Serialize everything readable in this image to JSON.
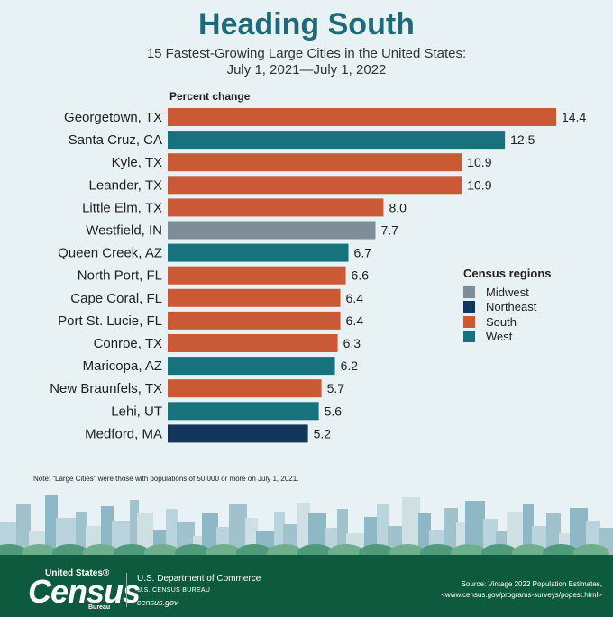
{
  "header": {
    "title": "Heading South",
    "subtitle_line1": "15 Fastest-Growing Large Cities in the United States:",
    "subtitle_line2": "July 1, 2021—July 1, 2022"
  },
  "colors": {
    "Midwest": "#7e8d98",
    "Northeast": "#13365b",
    "South": "#c95a35",
    "West": "#16727c",
    "title": "#1d6b78",
    "footer": "#0e5a3e"
  },
  "chart_data": {
    "type": "bar",
    "orientation": "horizontal",
    "value_label": "Percent change",
    "categories": [
      "Georgetown, TX",
      "Santa Cruz, CA",
      "Kyle, TX",
      "Leander, TX",
      "Little Elm, TX",
      "Westfield, IN",
      "Queen Creek, AZ",
      "North Port, FL",
      "Cape Coral, FL",
      "Port St. Lucie, FL",
      "Conroe, TX",
      "Maricopa, AZ",
      "New Braunfels, TX",
      "Lehi, UT",
      "Medford, MA"
    ],
    "values": [
      14.4,
      12.5,
      10.9,
      10.9,
      8.0,
      7.7,
      6.7,
      6.6,
      6.4,
      6.4,
      6.3,
      6.2,
      5.7,
      5.6,
      5.2
    ],
    "value_labels": [
      "14.4",
      "12.5",
      "10.9",
      "10.9",
      "8.0",
      "7.7",
      "6.7",
      "6.6",
      "6.4",
      "6.4",
      "6.3",
      "6.2",
      "5.7",
      "5.6",
      "5.2"
    ],
    "regions": [
      "South",
      "West",
      "South",
      "South",
      "South",
      "Midwest",
      "West",
      "South",
      "South",
      "South",
      "South",
      "West",
      "South",
      "West",
      "Northeast"
    ],
    "xlim": [
      0,
      14.4
    ],
    "legend": {
      "title": "Census regions",
      "position": "right",
      "entries": [
        "Midwest",
        "Northeast",
        "South",
        "West"
      ]
    }
  },
  "note": "Note: “Large Cities” were those with populations of 50,000 or more on July 1, 2021.",
  "footer": {
    "logo_top": "United States®",
    "logo_main": "Census",
    "logo_bureau": "Bureau",
    "department": "U.S. Department of Commerce",
    "bureau_line": "U.S. CENSUS BUREAU",
    "website": "census.gov",
    "source_line1": "Source: Vintage 2022 Population Estimates,",
    "source_line2": "<www.census.gov/programs-surveys/popest.html>"
  }
}
